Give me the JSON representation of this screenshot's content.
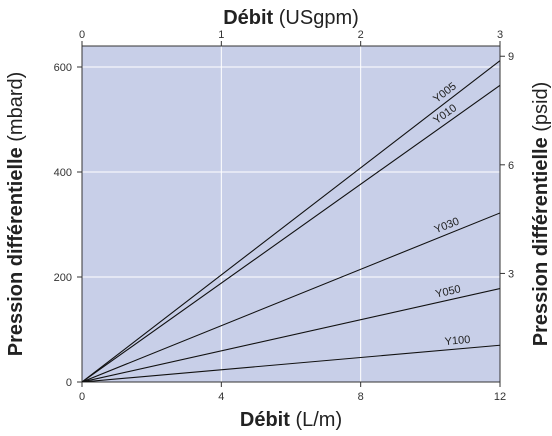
{
  "chart_data": {
    "type": "line",
    "x": [
      0,
      12
    ],
    "series": [
      {
        "name": "Y005",
        "values": [
          0,
          612
        ]
      },
      {
        "name": "Y010",
        "values": [
          0,
          565
        ]
      },
      {
        "name": "Y030",
        "values": [
          0,
          322
        ]
      },
      {
        "name": "Y050",
        "values": [
          0,
          178
        ]
      },
      {
        "name": "Y100",
        "values": [
          0,
          70
        ]
      }
    ],
    "xlabel": {
      "bold": "Débit",
      "unit": "(L/m)"
    },
    "ylabel": {
      "bold": "Pression différentielle",
      "unit": "(mbard)"
    },
    "x2label": {
      "bold": "Débit",
      "unit": "(USgpm)"
    },
    "y2label": {
      "bold": "Pression différentielle",
      "unit": "(psid)"
    },
    "xlim": [
      0,
      12
    ],
    "ylim": [
      0,
      640
    ],
    "x2lim": [
      0,
      3
    ],
    "x_ticks": [
      "0",
      "4",
      "8",
      "12"
    ],
    "x_tick_values": [
      0,
      4,
      8,
      12
    ],
    "y_ticks": [
      "0",
      "200",
      "400",
      "600"
    ],
    "y_tick_values": [
      0,
      200,
      400,
      600
    ],
    "x2_ticks": [
      "0",
      "1",
      "2",
      "3"
    ],
    "x2_tick_values": [
      0,
      1,
      2,
      3
    ],
    "y2_ticks": [
      "3",
      "6",
      "9"
    ],
    "y2_tick_values_mbar": [
      206.8,
      413.7,
      620.5
    ],
    "grid": true,
    "colors": {
      "plot_background": "#c8cfe8",
      "grid": "#ffffff",
      "line": "#111111"
    }
  }
}
